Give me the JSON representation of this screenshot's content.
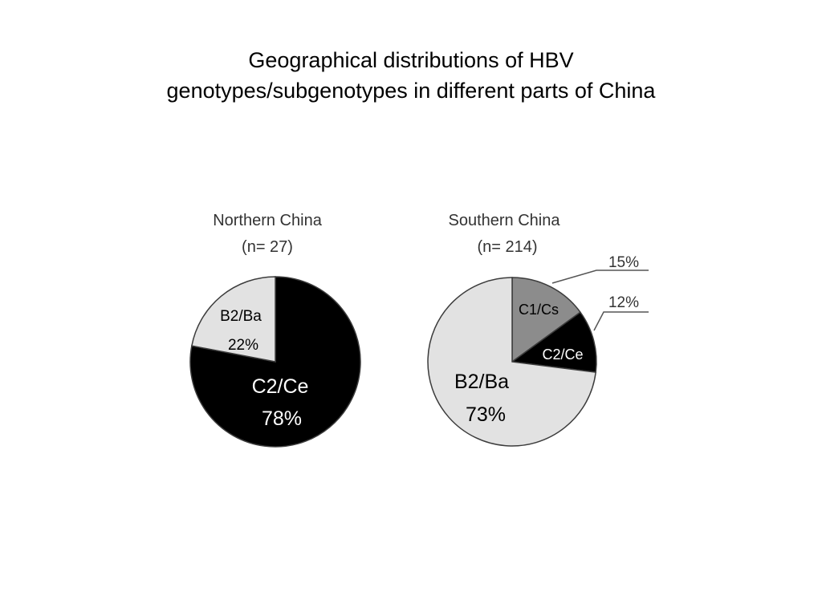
{
  "title": {
    "line1": "Geographical distributions of HBV",
    "line2": "genotypes/subgenotypes in different parts of China"
  },
  "colors": {
    "black": "#000000",
    "light_gray": "#e2e2e2",
    "mid_gray": "#8c8c8c",
    "outline": "#3c3c3c"
  },
  "chart_data": [
    {
      "type": "pie",
      "title": "Northern China",
      "subtitle": "(n= 27)",
      "slices": [
        {
          "name": "C2/Ce",
          "value": 78,
          "label": "78%",
          "color": "#000000"
        },
        {
          "name": "B2/Ba",
          "value": 22,
          "label": "22%",
          "color": "#e2e2e2"
        }
      ]
    },
    {
      "type": "pie",
      "title": "Southern China",
      "subtitle": "(n= 214)",
      "slices": [
        {
          "name": "C1/Cs",
          "value": 15,
          "label": "15%",
          "color": "#8c8c8c"
        },
        {
          "name": "C2/Ce",
          "value": 12,
          "label": "12%",
          "color": "#000000"
        },
        {
          "name": "B2/Ba",
          "value": 73,
          "label": "73%",
          "color": "#e2e2e2"
        }
      ]
    }
  ]
}
